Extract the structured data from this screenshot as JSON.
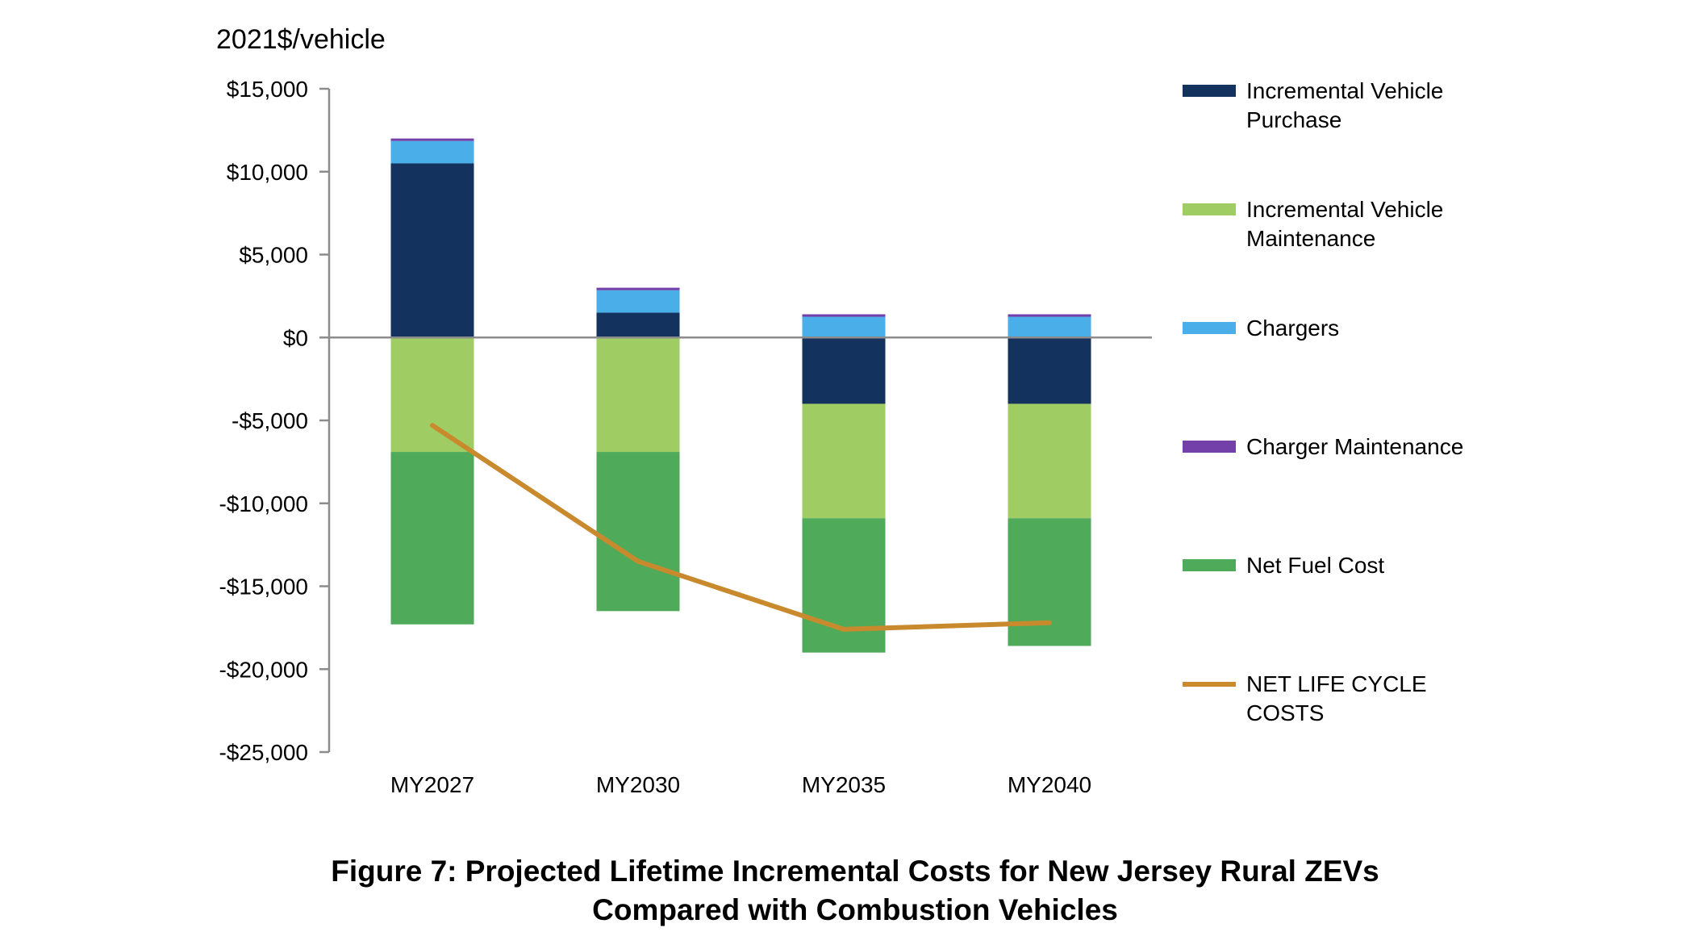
{
  "figure": {
    "unit_label": "2021$/vehicle",
    "caption_line1": "Figure 7: Projected Lifetime Incremental Costs for New Jersey Rural ZEVs",
    "caption_line2": "Compared with Combustion Vehicles"
  },
  "chart_data": {
    "type": "bar",
    "stacked": true,
    "categories": [
      "MY2027",
      "MY2030",
      "MY2035",
      "MY2040"
    ],
    "ylim": [
      -25000,
      15000
    ],
    "yticks": [
      15000,
      10000,
      5000,
      0,
      -5000,
      -10000,
      -15000,
      -20000,
      -25000
    ],
    "ytick_labels": [
      "$15,000",
      "$10,000",
      "$5,000",
      "$0",
      "-$5,000",
      "-$10,000",
      "-$15,000",
      "-$20,000",
      "-$25,000"
    ],
    "grid": false,
    "legend_position": "right",
    "series": [
      {
        "name": "Incremental Vehicle Purchase",
        "name_lines": [
          "Incremental Vehicle",
          "Purchase"
        ],
        "type": "bar",
        "color": "#13325e",
        "values": [
          10500,
          1500,
          -4000,
          -4000
        ]
      },
      {
        "name": "Incremental Vehicle Maintenance",
        "name_lines": [
          "Incremental Vehicle",
          "Maintenance"
        ],
        "type": "bar",
        "color": "#a0cd63",
        "values": [
          -6900,
          -6900,
          -6900,
          -6900
        ]
      },
      {
        "name": "Chargers",
        "name_lines": [
          "Chargers"
        ],
        "type": "bar",
        "color": "#4aaee8",
        "values": [
          1350,
          1350,
          1250,
          1250
        ]
      },
      {
        "name": "Charger Maintenance",
        "name_lines": [
          "Charger Maintenance"
        ],
        "type": "bar",
        "color": "#7240a8",
        "values": [
          150,
          150,
          150,
          150
        ]
      },
      {
        "name": "Net Fuel Cost",
        "name_lines": [
          "Net Fuel Cost"
        ],
        "type": "bar",
        "color": "#4faa5a",
        "values": [
          -10400,
          -9600,
          -8100,
          -7700
        ]
      },
      {
        "name": "NET LIFE CYCLE COSTS",
        "name_lines": [
          "NET LIFE CYCLE",
          "COSTS"
        ],
        "type": "line",
        "color": "#c98a2e",
        "values": [
          -5300,
          -13500,
          -17600,
          -17200
        ]
      }
    ]
  }
}
